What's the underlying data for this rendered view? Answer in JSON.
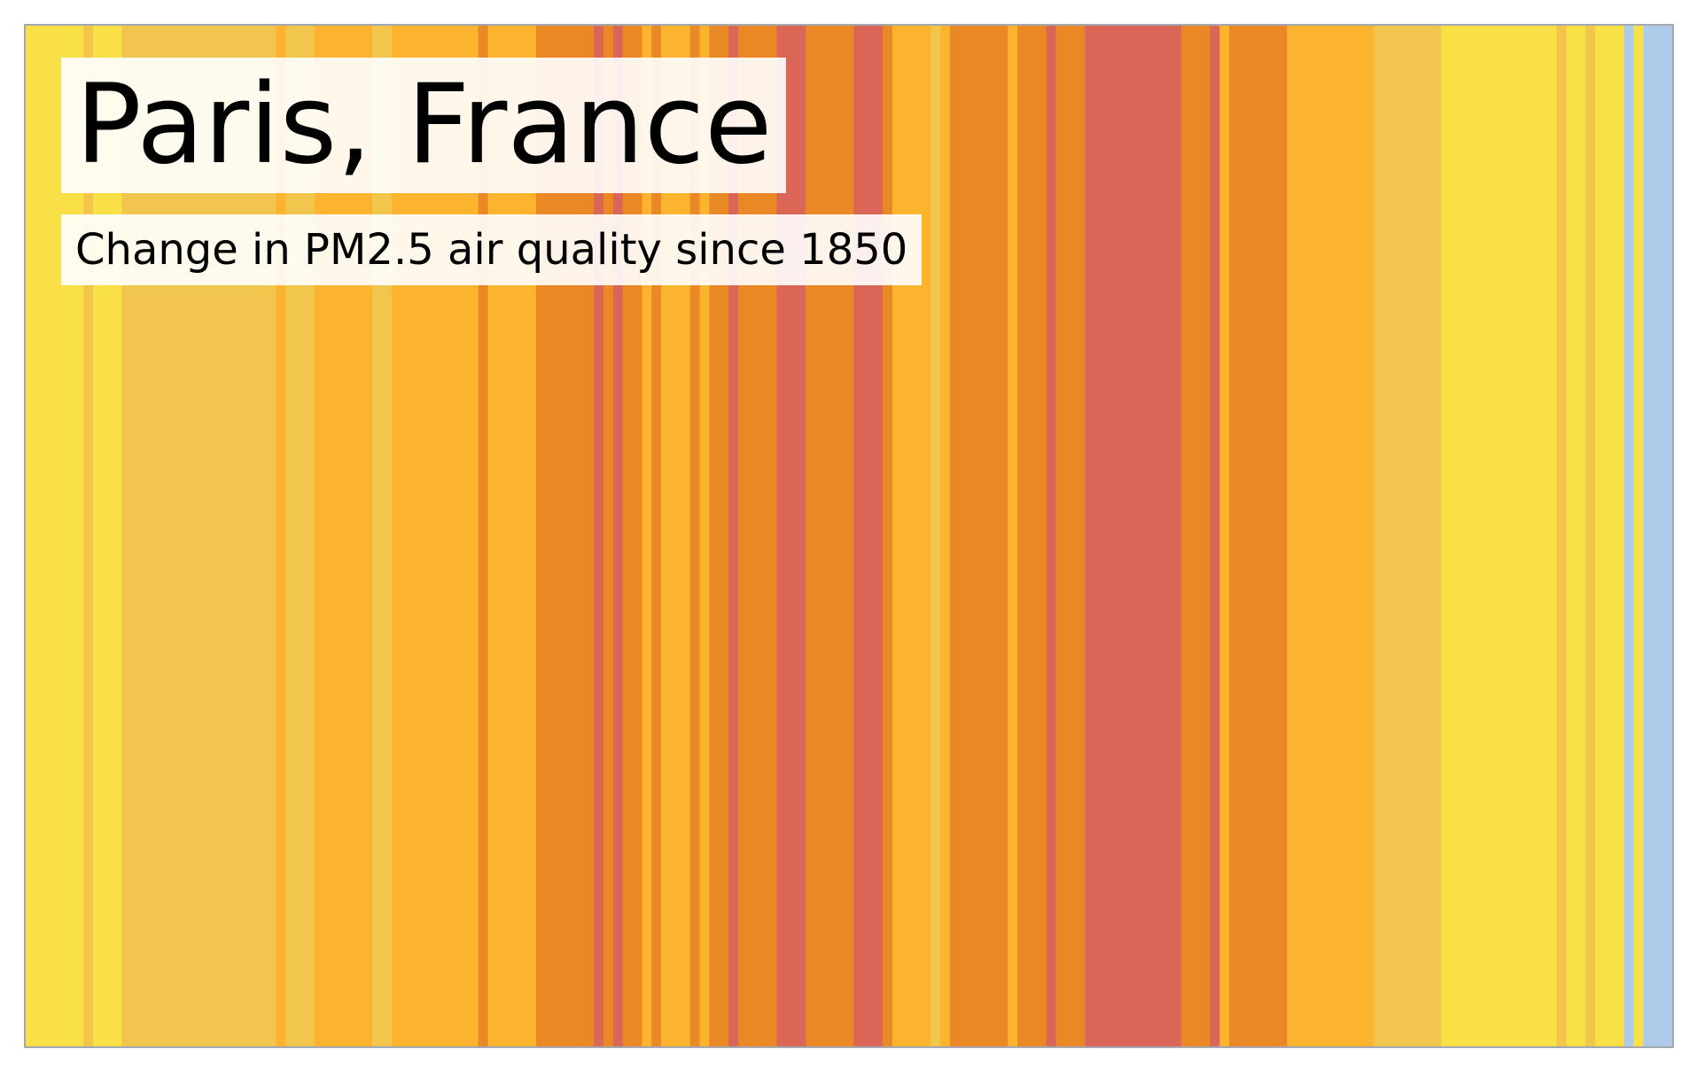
{
  "chart_data": {
    "type": "heatmap",
    "title": "Paris, France",
    "subtitle": "Change in PM2.5 air quality since 1850",
    "x_start": 1850,
    "x_end": 2021,
    "palette": {
      "yellow": "#f9e046",
      "light_orange": "#f2c54d",
      "orange": "#fcb32d",
      "dark_orange": "#e98825",
      "red": "#db6658",
      "blue": "#aecbea"
    },
    "bands": [
      {
        "start": 1850,
        "end": 1856,
        "color": "#f9e046"
      },
      {
        "start": 1856,
        "end": 1857,
        "color": "#f2c54d"
      },
      {
        "start": 1857,
        "end": 1860,
        "color": "#f9e046"
      },
      {
        "start": 1860,
        "end": 1876,
        "color": "#f2c54d"
      },
      {
        "start": 1876,
        "end": 1877,
        "color": "#fcb32d"
      },
      {
        "start": 1877,
        "end": 1880,
        "color": "#f2c54d"
      },
      {
        "start": 1880,
        "end": 1886,
        "color": "#fcb32d"
      },
      {
        "start": 1886,
        "end": 1888,
        "color": "#f2c54d"
      },
      {
        "start": 1888,
        "end": 1897,
        "color": "#fcb32d"
      },
      {
        "start": 1897,
        "end": 1898,
        "color": "#e98825"
      },
      {
        "start": 1898,
        "end": 1903,
        "color": "#fcb32d"
      },
      {
        "start": 1903,
        "end": 1909,
        "color": "#e98825"
      },
      {
        "start": 1909,
        "end": 1910,
        "color": "#db6658"
      },
      {
        "start": 1910,
        "end": 1911,
        "color": "#e98825"
      },
      {
        "start": 1911,
        "end": 1912,
        "color": "#db6658"
      },
      {
        "start": 1912,
        "end": 1914,
        "color": "#e98825"
      },
      {
        "start": 1914,
        "end": 1915,
        "color": "#fcb32d"
      },
      {
        "start": 1915,
        "end": 1916,
        "color": "#e98825"
      },
      {
        "start": 1916,
        "end": 1919,
        "color": "#fcb32d"
      },
      {
        "start": 1919,
        "end": 1920,
        "color": "#e98825"
      },
      {
        "start": 1920,
        "end": 1921,
        "color": "#fcb32d"
      },
      {
        "start": 1921,
        "end": 1923,
        "color": "#e98825"
      },
      {
        "start": 1923,
        "end": 1924,
        "color": "#db6658"
      },
      {
        "start": 1924,
        "end": 1928,
        "color": "#e98825"
      },
      {
        "start": 1928,
        "end": 1931,
        "color": "#db6658"
      },
      {
        "start": 1931,
        "end": 1936,
        "color": "#e98825"
      },
      {
        "start": 1936,
        "end": 1939,
        "color": "#db6658"
      },
      {
        "start": 1939,
        "end": 1940,
        "color": "#e98825"
      },
      {
        "start": 1940,
        "end": 1944,
        "color": "#fcb32d"
      },
      {
        "start": 1944,
        "end": 1945,
        "color": "#f2c54d"
      },
      {
        "start": 1945,
        "end": 1946,
        "color": "#fcb32d"
      },
      {
        "start": 1946,
        "end": 1952,
        "color": "#e98825"
      },
      {
        "start": 1952,
        "end": 1953,
        "color": "#fcb32d"
      },
      {
        "start": 1953,
        "end": 1956,
        "color": "#e98825"
      },
      {
        "start": 1956,
        "end": 1957,
        "color": "#db6658"
      },
      {
        "start": 1957,
        "end": 1960,
        "color": "#e98825"
      },
      {
        "start": 1960,
        "end": 1970,
        "color": "#db6658"
      },
      {
        "start": 1970,
        "end": 1973,
        "color": "#e98825"
      },
      {
        "start": 1973,
        "end": 1974,
        "color": "#db6658"
      },
      {
        "start": 1974,
        "end": 1975,
        "color": "#fcb32d"
      },
      {
        "start": 1975,
        "end": 1981,
        "color": "#e98825"
      },
      {
        "start": 1981,
        "end": 1990,
        "color": "#fcb32d"
      },
      {
        "start": 1990,
        "end": 1997,
        "color": "#f2c54d"
      },
      {
        "start": 1997,
        "end": 2009,
        "color": "#f9e046"
      },
      {
        "start": 2009,
        "end": 2010,
        "color": "#f2c54d"
      },
      {
        "start": 2010,
        "end": 2012,
        "color": "#f9e046"
      },
      {
        "start": 2012,
        "end": 2013,
        "color": "#f2c54d"
      },
      {
        "start": 2013,
        "end": 2016,
        "color": "#f9e046"
      },
      {
        "start": 2016,
        "end": 2017,
        "color": "#aecbea"
      },
      {
        "start": 2017,
        "end": 2018,
        "color": "#f9e046"
      },
      {
        "start": 2018,
        "end": 2021,
        "color": "#aecbea"
      }
    ],
    "grid": false,
    "legend": "none"
  }
}
